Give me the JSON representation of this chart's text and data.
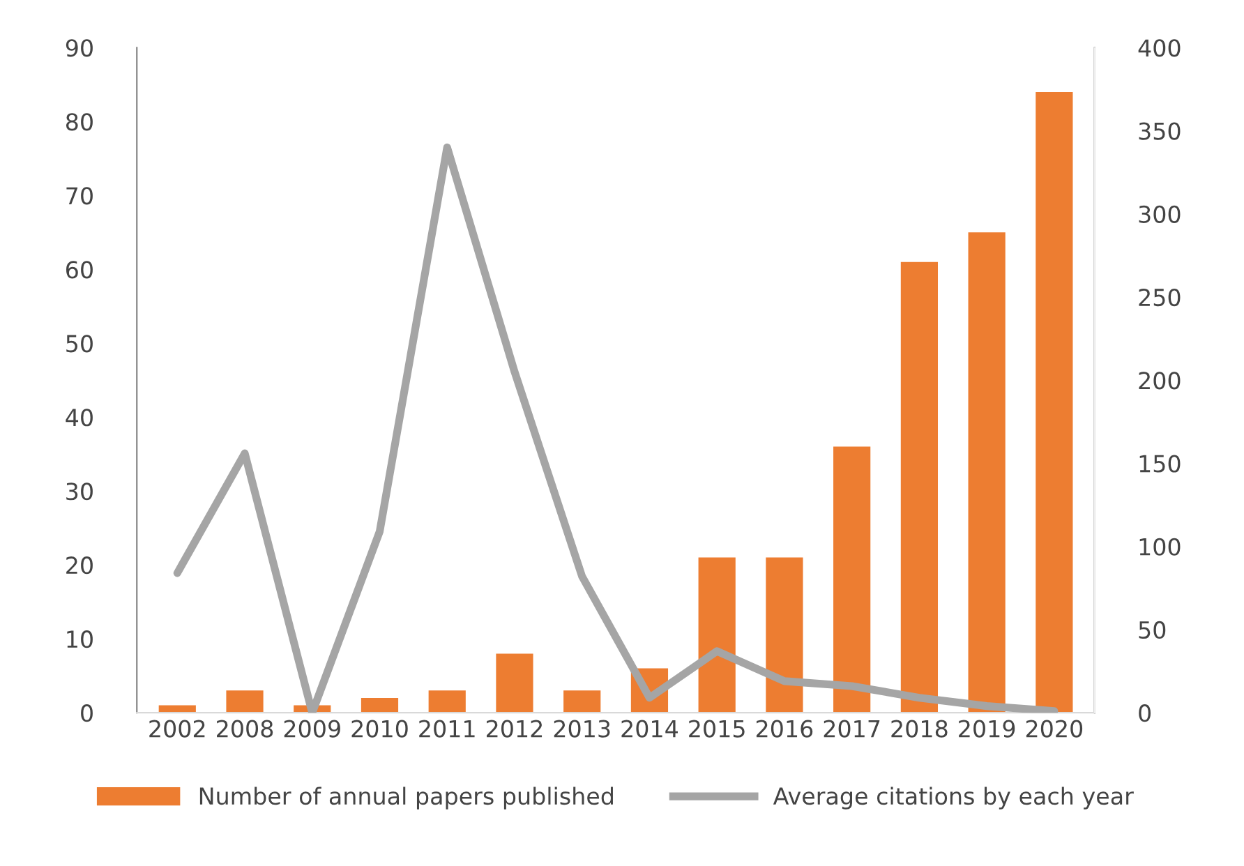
{
  "chart_data": {
    "type": "bar",
    "categories": [
      "2002",
      "2008",
      "2009",
      "2010",
      "2011",
      "2012",
      "2013",
      "2014",
      "2015",
      "2016",
      "2017",
      "2018",
      "2019",
      "2020"
    ],
    "series": [
      {
        "name": "Number of annual papers published",
        "color": "#ed7d31",
        "values": [
          1,
          3,
          1,
          2,
          3,
          8,
          3,
          6,
          21,
          21,
          36,
          61,
          65,
          84
        ]
      },
      {
        "name": "Average citations by each year",
        "type": "line",
        "axis": "y2",
        "color": "#a5a5a5",
        "values": [
          84,
          156,
          0,
          109,
          340,
          205,
          82,
          9,
          37,
          19,
          16,
          9,
          4,
          1
        ]
      }
    ],
    "ylim": [
      0,
      90
    ],
    "yticks": [
      0,
      10,
      20,
      30,
      40,
      50,
      60,
      70,
      80,
      90
    ],
    "y2lim": [
      0,
      400
    ],
    "y2ticks": [
      0,
      50,
      100,
      150,
      200,
      250,
      300,
      350,
      400
    ],
    "grid": false,
    "legend": "bottom",
    "marker": "none",
    "line_style": "solid"
  }
}
